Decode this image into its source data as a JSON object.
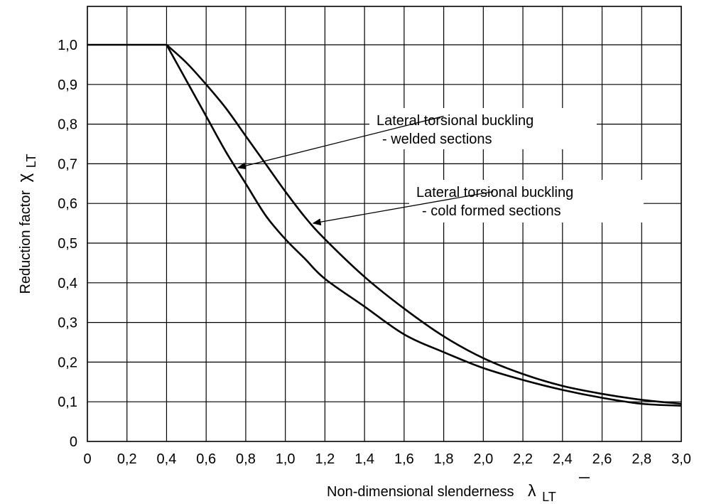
{
  "chart_data": {
    "type": "line",
    "xlabel": "Non-dimensional slenderness",
    "xlabel_symbol": "λ",
    "xlabel_subscript": "LT",
    "ylabel": "Reduction factor",
    "ylabel_symbol": "χ",
    "ylabel_subscript": "LT",
    "xlim": [
      0,
      3.0
    ],
    "ylim": [
      0,
      1.1
    ],
    "grid": true,
    "x_ticks": [
      0,
      0.2,
      0.4,
      0.6,
      0.8,
      1.0,
      1.2,
      1.4,
      1.6,
      1.8,
      2.0,
      2.2,
      2.4,
      2.6,
      2.8,
      3.0
    ],
    "x_tick_labels": [
      "0",
      "0,2",
      "0,4",
      "0,6",
      "0,8",
      "1,0",
      "1,2",
      "1,4",
      "1,6",
      "1,8",
      "2,0",
      "2,2",
      "2,4",
      "2,6",
      "2,8",
      "3,0"
    ],
    "y_ticks": [
      0,
      0.1,
      0.2,
      0.3,
      0.4,
      0.5,
      0.6,
      0.7,
      0.8,
      0.9,
      1.0
    ],
    "y_tick_labels": [
      "0",
      "0,1",
      "0,2",
      "0,3",
      "0,4",
      "0,5",
      "0,6",
      "0,7",
      "0,8",
      "0,9",
      "1,0"
    ],
    "series": [
      {
        "name": "Lateral torsional buckling - welded sections",
        "x": [
          0,
          0.2,
          0.4,
          0.5,
          0.6,
          0.7,
          0.8,
          0.9,
          1.0,
          1.1,
          1.2,
          1.4,
          1.6,
          1.8,
          2.0,
          2.2,
          2.4,
          2.6,
          2.8,
          3.0
        ],
        "y": [
          1.0,
          1.0,
          1.0,
          0.91,
          0.82,
          0.73,
          0.65,
          0.57,
          0.51,
          0.46,
          0.41,
          0.34,
          0.27,
          0.225,
          0.185,
          0.155,
          0.13,
          0.11,
          0.095,
          0.09
        ]
      },
      {
        "name": "Lateral torsional buckling - cold formed sections",
        "x": [
          0.4,
          0.5,
          0.6,
          0.7,
          0.8,
          0.9,
          1.0,
          1.1,
          1.2,
          1.4,
          1.6,
          1.8,
          2.0,
          2.2,
          2.4,
          2.6,
          2.8,
          3.0
        ],
        "y": [
          1.0,
          0.955,
          0.9,
          0.84,
          0.77,
          0.7,
          0.63,
          0.565,
          0.51,
          0.415,
          0.335,
          0.265,
          0.21,
          0.17,
          0.14,
          0.12,
          0.105,
          0.095
        ]
      }
    ],
    "annotations": [
      {
        "lines": [
          "Lateral torsional buckling",
          "- welded sections"
        ],
        "arrow_from": [
          1.8,
          0.82
        ],
        "arrow_to": [
          0.76,
          0.69
        ]
      },
      {
        "lines": [
          "Lateral torsional buckling",
          "- cold formed sections"
        ],
        "arrow_from": [
          2.05,
          0.63
        ],
        "arrow_to": [
          1.14,
          0.55
        ]
      }
    ]
  }
}
